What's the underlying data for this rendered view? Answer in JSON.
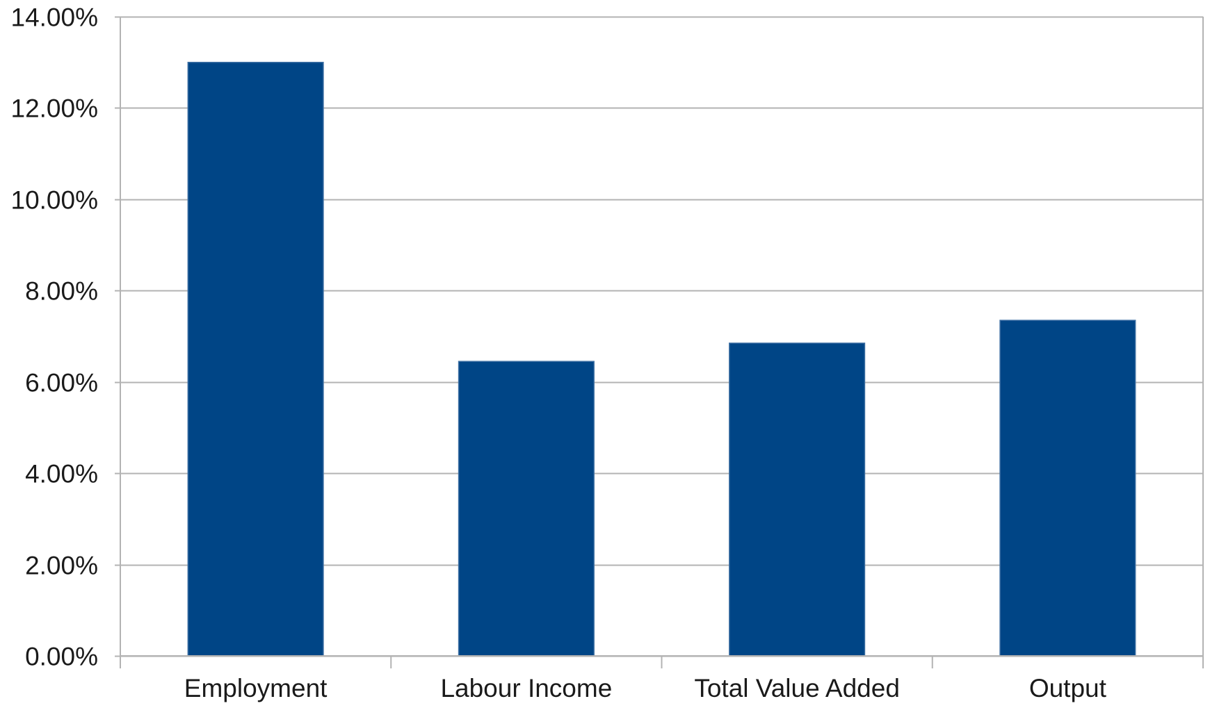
{
  "chart_data": {
    "type": "bar",
    "categories": [
      "Employment",
      "Labour Income",
      "Total Value Added",
      "Output"
    ],
    "values": [
      13.0,
      6.45,
      6.85,
      7.35
    ],
    "ylim": [
      0,
      14
    ],
    "yticks": [
      0,
      2,
      4,
      6,
      8,
      10,
      12,
      14
    ],
    "ytick_labels": [
      "0.00%",
      "2.00%",
      "4.00%",
      "6.00%",
      "8.00%",
      "10.00%",
      "12.00%",
      "14.00%"
    ],
    "grid": true,
    "legend": "none",
    "colors": {
      "bar": "#004586",
      "grid": "#b3b3b3",
      "axis": "#b3b3b3"
    }
  }
}
